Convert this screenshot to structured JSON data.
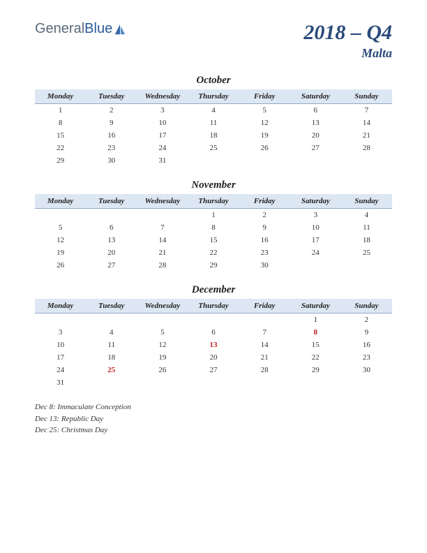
{
  "logo": {
    "text1": "General",
    "text2": "Blue"
  },
  "title": {
    "quarter": "2018 – Q4",
    "country": "Malta"
  },
  "dayHeaders": [
    "Monday",
    "Tuesday",
    "Wednesday",
    "Thursday",
    "Friday",
    "Saturday",
    "Sunday"
  ],
  "colors": {
    "header_bg": "#dde7f3",
    "header_border": "#94a8c8",
    "title_color": "#2a4a7a",
    "holiday_color": "#c02020",
    "text_color": "#333333",
    "logo_gray": "#5a6a7a",
    "logo_blue": "#2a5a9a"
  },
  "months": [
    {
      "name": "October",
      "weeks": [
        [
          "1",
          "2",
          "3",
          "4",
          "5",
          "6",
          "7"
        ],
        [
          "8",
          "9",
          "10",
          "11",
          "12",
          "13",
          "14"
        ],
        [
          "15",
          "16",
          "17",
          "18",
          "19",
          "20",
          "21"
        ],
        [
          "22",
          "23",
          "24",
          "25",
          "26",
          "27",
          "28"
        ],
        [
          "29",
          "30",
          "31",
          "",
          "",
          "",
          ""
        ]
      ],
      "holidays": []
    },
    {
      "name": "November",
      "weeks": [
        [
          "",
          "",
          "",
          "1",
          "2",
          "3",
          "4"
        ],
        [
          "5",
          "6",
          "7",
          "8",
          "9",
          "10",
          "11"
        ],
        [
          "12",
          "13",
          "14",
          "15",
          "16",
          "17",
          "18"
        ],
        [
          "19",
          "20",
          "21",
          "22",
          "23",
          "24",
          "25"
        ],
        [
          "26",
          "27",
          "28",
          "29",
          "30",
          "",
          ""
        ]
      ],
      "holidays": []
    },
    {
      "name": "December",
      "weeks": [
        [
          "",
          "",
          "",
          "",
          "",
          "1",
          "2"
        ],
        [
          "3",
          "4",
          "5",
          "6",
          "7",
          "8",
          "9"
        ],
        [
          "10",
          "11",
          "12",
          "13",
          "14",
          "15",
          "16"
        ],
        [
          "17",
          "18",
          "19",
          "20",
          "21",
          "22",
          "23"
        ],
        [
          "24",
          "25",
          "26",
          "27",
          "28",
          "29",
          "30"
        ],
        [
          "31",
          "",
          "",
          "",
          "",
          "",
          ""
        ]
      ],
      "holidays": [
        "8",
        "13",
        "25"
      ]
    }
  ],
  "holidayList": [
    "Dec 8: Immaculate Conception",
    "Dec 13: Republic Day",
    "Dec 25: Christmas Day"
  ]
}
